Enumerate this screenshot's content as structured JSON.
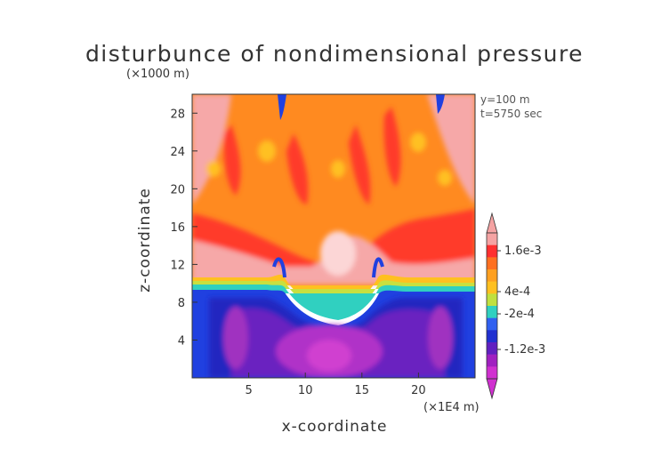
{
  "chart_data": {
    "type": "heatmap",
    "title": "disturbunce of nondimensional pressure",
    "xlabel": "x-coordinate",
    "ylabel": "z-coordinate",
    "x_unit": "(×1E4 m)",
    "z_unit": "(×1000 m)",
    "annotations": [
      "y=100 m",
      "t=5750 sec"
    ],
    "xlim": [
      0,
      25
    ],
    "ylim": [
      0,
      30
    ],
    "x_ticks": [
      "5",
      "10",
      "15",
      "20"
    ],
    "y_ticks": [
      "4",
      "8",
      "12",
      "16",
      "20",
      "24",
      "28"
    ],
    "colorbar": {
      "tick_labels": [
        "1.6e-3",
        "4e-4",
        "-2e-4",
        "-1.2e-3"
      ],
      "colors": [
        "#f5a3a3",
        "#ff3030",
        "#ff7020",
        "#ffa020",
        "#ffc020",
        "#c0e040",
        "#30d0c0",
        "#3060f0",
        "#2030d0",
        "#6020c0",
        "#a020c0",
        "#d030d0"
      ]
    },
    "regions": [
      {
        "z_range": [
          11,
          30
        ],
        "description_color": "#ff7020",
        "value_range": [
          0.0004,
          0.0016
        ]
      },
      {
        "z_range": [
          10,
          12
        ],
        "description_color": "#f5a3a3",
        "value_range": [
          0.0016,
          0.002
        ]
      },
      {
        "z_range": [
          0,
          10
        ],
        "description_color": "#2030d0",
        "value_range": [
          -0.0012,
          -0.0002
        ]
      }
    ]
  }
}
